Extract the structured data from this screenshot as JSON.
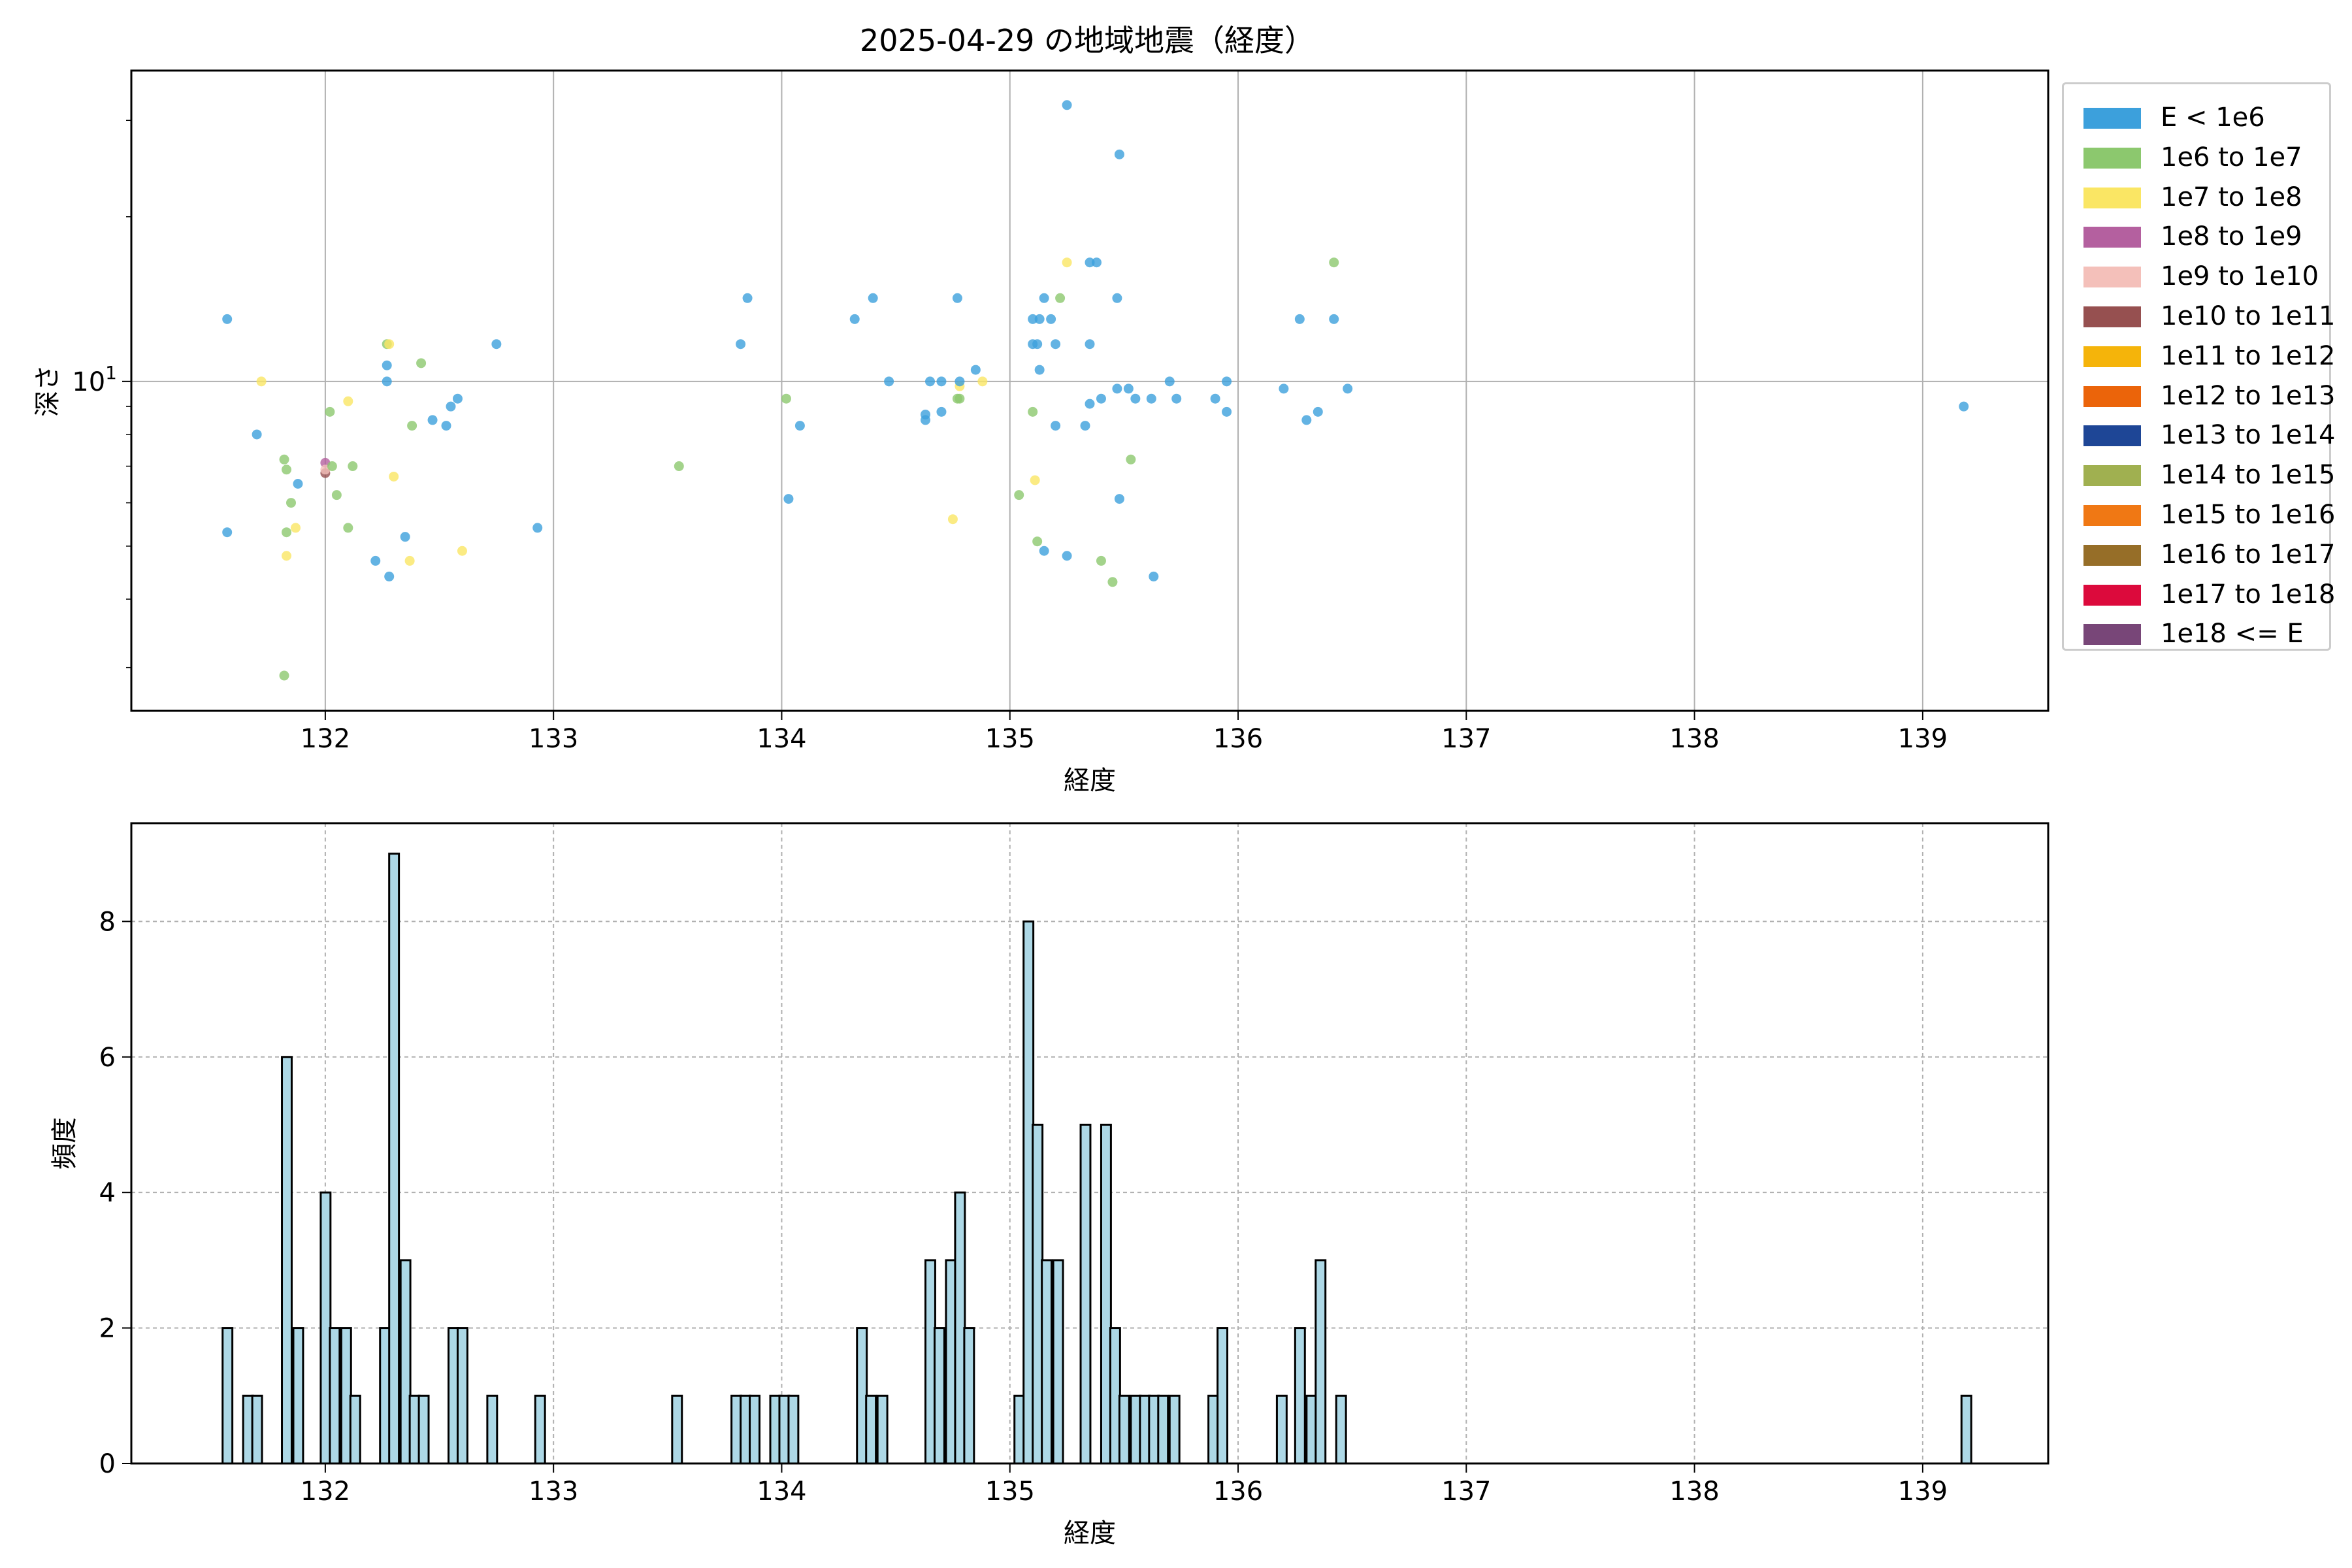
{
  "title": "2025-04-29 の地域地震（経度）",
  "legend": [
    {
      "label": "E < 1e6",
      "color": "#3ca0dc"
    },
    {
      "label": "1e6 to 1e7",
      "color": "#8cc86e"
    },
    {
      "label": "1e7 to 1e8",
      "color": "#fae664"
    },
    {
      "label": "1e8 to 1e9",
      "color": "#b4609f"
    },
    {
      "label": "1e9 to 1e10",
      "color": "#f4c0ba"
    },
    {
      "label": "1e10 to 1e11",
      "color": "#965050"
    },
    {
      "label": "1e11 to 1e12",
      "color": "#f5b40a"
    },
    {
      "label": "1e12 to 1e13",
      "color": "#eb640a"
    },
    {
      "label": "1e13 to 1e14",
      "color": "#1e4696"
    },
    {
      "label": "1e14 to 1e15",
      "color": "#a0b050"
    },
    {
      "label": "1e15 to 1e16",
      "color": "#f07814"
    },
    {
      "label": "1e16 to 1e17",
      "color": "#966e28"
    },
    {
      "label": "1e17 to 1e18",
      "color": "#dc0a3c"
    },
    {
      "label": "1e18 <= E",
      "color": "#784678"
    }
  ],
  "chart_data": [
    {
      "type": "scatter",
      "title": "2025-04-29 の地域地震（経度）",
      "xlabel": "経度",
      "ylabel": "深さ",
      "xlim": [
        131.15,
        139.55
      ],
      "ylim": [
        2.5,
        37
      ],
      "yscale": "log",
      "ytick_label": "10^1",
      "xticks": [
        132,
        133,
        134,
        135,
        136,
        137,
        138,
        139
      ],
      "grid": true,
      "legend_position": "outside-right",
      "points": [
        [
          131.57,
          13.0,
          0
        ],
        [
          131.57,
          5.3,
          0
        ],
        [
          131.7,
          8.0,
          0
        ],
        [
          131.88,
          6.5,
          0
        ],
        [
          131.72,
          10.0,
          2
        ],
        [
          131.83,
          4.8,
          2
        ],
        [
          131.87,
          5.4,
          2
        ],
        [
          131.82,
          7.2,
          1
        ],
        [
          131.83,
          5.3,
          1
        ],
        [
          131.82,
          2.9,
          1
        ],
        [
          131.85,
          6.0,
          1
        ],
        [
          131.83,
          6.9,
          1
        ],
        [
          132.0,
          7.1,
          3
        ],
        [
          132.0,
          6.8,
          5
        ],
        [
          132.0,
          6.9,
          4
        ],
        [
          132.02,
          8.8,
          1
        ],
        [
          132.03,
          7.0,
          1
        ],
        [
          132.05,
          6.2,
          1
        ],
        [
          132.1,
          5.4,
          1
        ],
        [
          132.12,
          7.0,
          1
        ],
        [
          132.1,
          9.2,
          2
        ],
        [
          132.22,
          4.7,
          0
        ],
        [
          132.28,
          4.4,
          0
        ],
        [
          132.27,
          10.0,
          0
        ],
        [
          132.27,
          10.7,
          0
        ],
        [
          132.27,
          11.7,
          1
        ],
        [
          132.28,
          11.7,
          2
        ],
        [
          132.3,
          6.7,
          2
        ],
        [
          132.35,
          5.2,
          0
        ],
        [
          132.38,
          8.3,
          1
        ],
        [
          132.37,
          4.7,
          2
        ],
        [
          132.42,
          10.8,
          1
        ],
        [
          132.47,
          8.5,
          0
        ],
        [
          132.55,
          9.0,
          0
        ],
        [
          132.53,
          8.3,
          0
        ],
        [
          132.58,
          9.3,
          0
        ],
        [
          132.6,
          4.9,
          2
        ],
        [
          132.75,
          11.7,
          0
        ],
        [
          132.93,
          5.4,
          0
        ],
        [
          133.55,
          7.0,
          1
        ],
        [
          133.82,
          11.7,
          0
        ],
        [
          133.85,
          14.2,
          0
        ],
        [
          134.02,
          9.3,
          1
        ],
        [
          134.03,
          6.1,
          0
        ],
        [
          134.08,
          8.3,
          0
        ],
        [
          134.32,
          13.0,
          0
        ],
        [
          134.4,
          14.2,
          0
        ],
        [
          134.47,
          10.0,
          0
        ],
        [
          134.63,
          8.7,
          0
        ],
        [
          134.63,
          8.5,
          0
        ],
        [
          134.65,
          10.0,
          0
        ],
        [
          134.7,
          8.8,
          0
        ],
        [
          134.7,
          10.0,
          0
        ],
        [
          134.75,
          5.6,
          2
        ],
        [
          134.77,
          14.2,
          0
        ],
        [
          134.77,
          9.3,
          1
        ],
        [
          134.78,
          9.3,
          1
        ],
        [
          134.78,
          9.8,
          2
        ],
        [
          134.78,
          10.0,
          0
        ],
        [
          134.85,
          10.5,
          0
        ],
        [
          134.88,
          10.0,
          2
        ],
        [
          135.04,
          6.2,
          1
        ],
        [
          135.1,
          11.7,
          0
        ],
        [
          135.1,
          13.0,
          0
        ],
        [
          135.1,
          8.8,
          1
        ],
        [
          135.12,
          11.7,
          0
        ],
        [
          135.11,
          6.6,
          2
        ],
        [
          135.12,
          5.1,
          1
        ],
        [
          135.13,
          13.0,
          0
        ],
        [
          135.13,
          10.5,
          0
        ],
        [
          135.15,
          4.9,
          0
        ],
        [
          135.15,
          14.2,
          0
        ],
        [
          135.18,
          13.0,
          0
        ],
        [
          135.2,
          11.7,
          0
        ],
        [
          135.2,
          8.3,
          0
        ],
        [
          135.22,
          14.2,
          1
        ],
        [
          135.25,
          4.8,
          0
        ],
        [
          135.25,
          16.5,
          2
        ],
        [
          135.25,
          32.0,
          0
        ],
        [
          135.33,
          8.3,
          0
        ],
        [
          135.35,
          11.7,
          0
        ],
        [
          135.35,
          16.5,
          0
        ],
        [
          135.35,
          9.1,
          0
        ],
        [
          135.38,
          16.5,
          0
        ],
        [
          135.4,
          9.3,
          0
        ],
        [
          135.4,
          4.7,
          1
        ],
        [
          135.45,
          4.3,
          1
        ],
        [
          135.47,
          9.7,
          0
        ],
        [
          135.47,
          14.2,
          0
        ],
        [
          135.48,
          6.1,
          0
        ],
        [
          135.48,
          26.0,
          0
        ],
        [
          135.52,
          9.7,
          0
        ],
        [
          135.53,
          7.2,
          1
        ],
        [
          135.55,
          9.3,
          0
        ],
        [
          135.62,
          9.3,
          0
        ],
        [
          135.63,
          4.4,
          0
        ],
        [
          135.7,
          10.0,
          0
        ],
        [
          135.73,
          9.3,
          0
        ],
        [
          135.9,
          9.3,
          0
        ],
        [
          135.95,
          10.0,
          0
        ],
        [
          135.95,
          8.8,
          0
        ],
        [
          136.2,
          9.7,
          0
        ],
        [
          136.27,
          13.0,
          0
        ],
        [
          136.3,
          8.5,
          0
        ],
        [
          136.35,
          8.8,
          0
        ],
        [
          136.42,
          13.0,
          0
        ],
        [
          136.42,
          16.5,
          1
        ],
        [
          136.48,
          9.7,
          0
        ],
        [
          139.18,
          9.0,
          0
        ]
      ]
    },
    {
      "type": "bar",
      "title": "",
      "xlabel": "経度",
      "ylabel": "頻度",
      "xlim": [
        131.15,
        139.55
      ],
      "ylim": [
        0,
        9.45
      ],
      "xticks": [
        132,
        133,
        134,
        135,
        136,
        137,
        138,
        139
      ],
      "yticks": [
        0,
        2,
        4,
        6,
        8
      ],
      "grid": true,
      "bin_width": 0.04275,
      "bins": [
        [
          131.55,
          2
        ],
        [
          131.64,
          1
        ],
        [
          131.68,
          1
        ],
        [
          131.81,
          6
        ],
        [
          131.86,
          2
        ],
        [
          131.98,
          4
        ],
        [
          132.02,
          2
        ],
        [
          132.07,
          2
        ],
        [
          132.11,
          1
        ],
        [
          132.24,
          2
        ],
        [
          132.28,
          9
        ],
        [
          132.33,
          3
        ],
        [
          132.37,
          1
        ],
        [
          132.41,
          1
        ],
        [
          132.54,
          2
        ],
        [
          132.58,
          2
        ],
        [
          132.71,
          1
        ],
        [
          132.92,
          1
        ],
        [
          133.52,
          1
        ],
        [
          133.78,
          1
        ],
        [
          133.82,
          1
        ],
        [
          133.86,
          1
        ],
        [
          133.95,
          1
        ],
        [
          133.99,
          1
        ],
        [
          134.03,
          1
        ],
        [
          134.33,
          2
        ],
        [
          134.37,
          1
        ],
        [
          134.42,
          1
        ],
        [
          134.63,
          3
        ],
        [
          134.67,
          2
        ],
        [
          134.72,
          3
        ],
        [
          134.76,
          4
        ],
        [
          134.8,
          2
        ],
        [
          135.02,
          1
        ],
        [
          135.06,
          8
        ],
        [
          135.1,
          5
        ],
        [
          135.14,
          3
        ],
        [
          135.19,
          3
        ],
        [
          135.31,
          5
        ],
        [
          135.4,
          5
        ],
        [
          135.44,
          2
        ],
        [
          135.48,
          1
        ],
        [
          135.53,
          1
        ],
        [
          135.57,
          1
        ],
        [
          135.61,
          1
        ],
        [
          135.65,
          1
        ],
        [
          135.7,
          1
        ],
        [
          135.87,
          1
        ],
        [
          135.91,
          2
        ],
        [
          136.17,
          1
        ],
        [
          136.25,
          2
        ],
        [
          136.3,
          1
        ],
        [
          136.34,
          3
        ],
        [
          136.43,
          1
        ],
        [
          139.17,
          1
        ]
      ]
    }
  ]
}
